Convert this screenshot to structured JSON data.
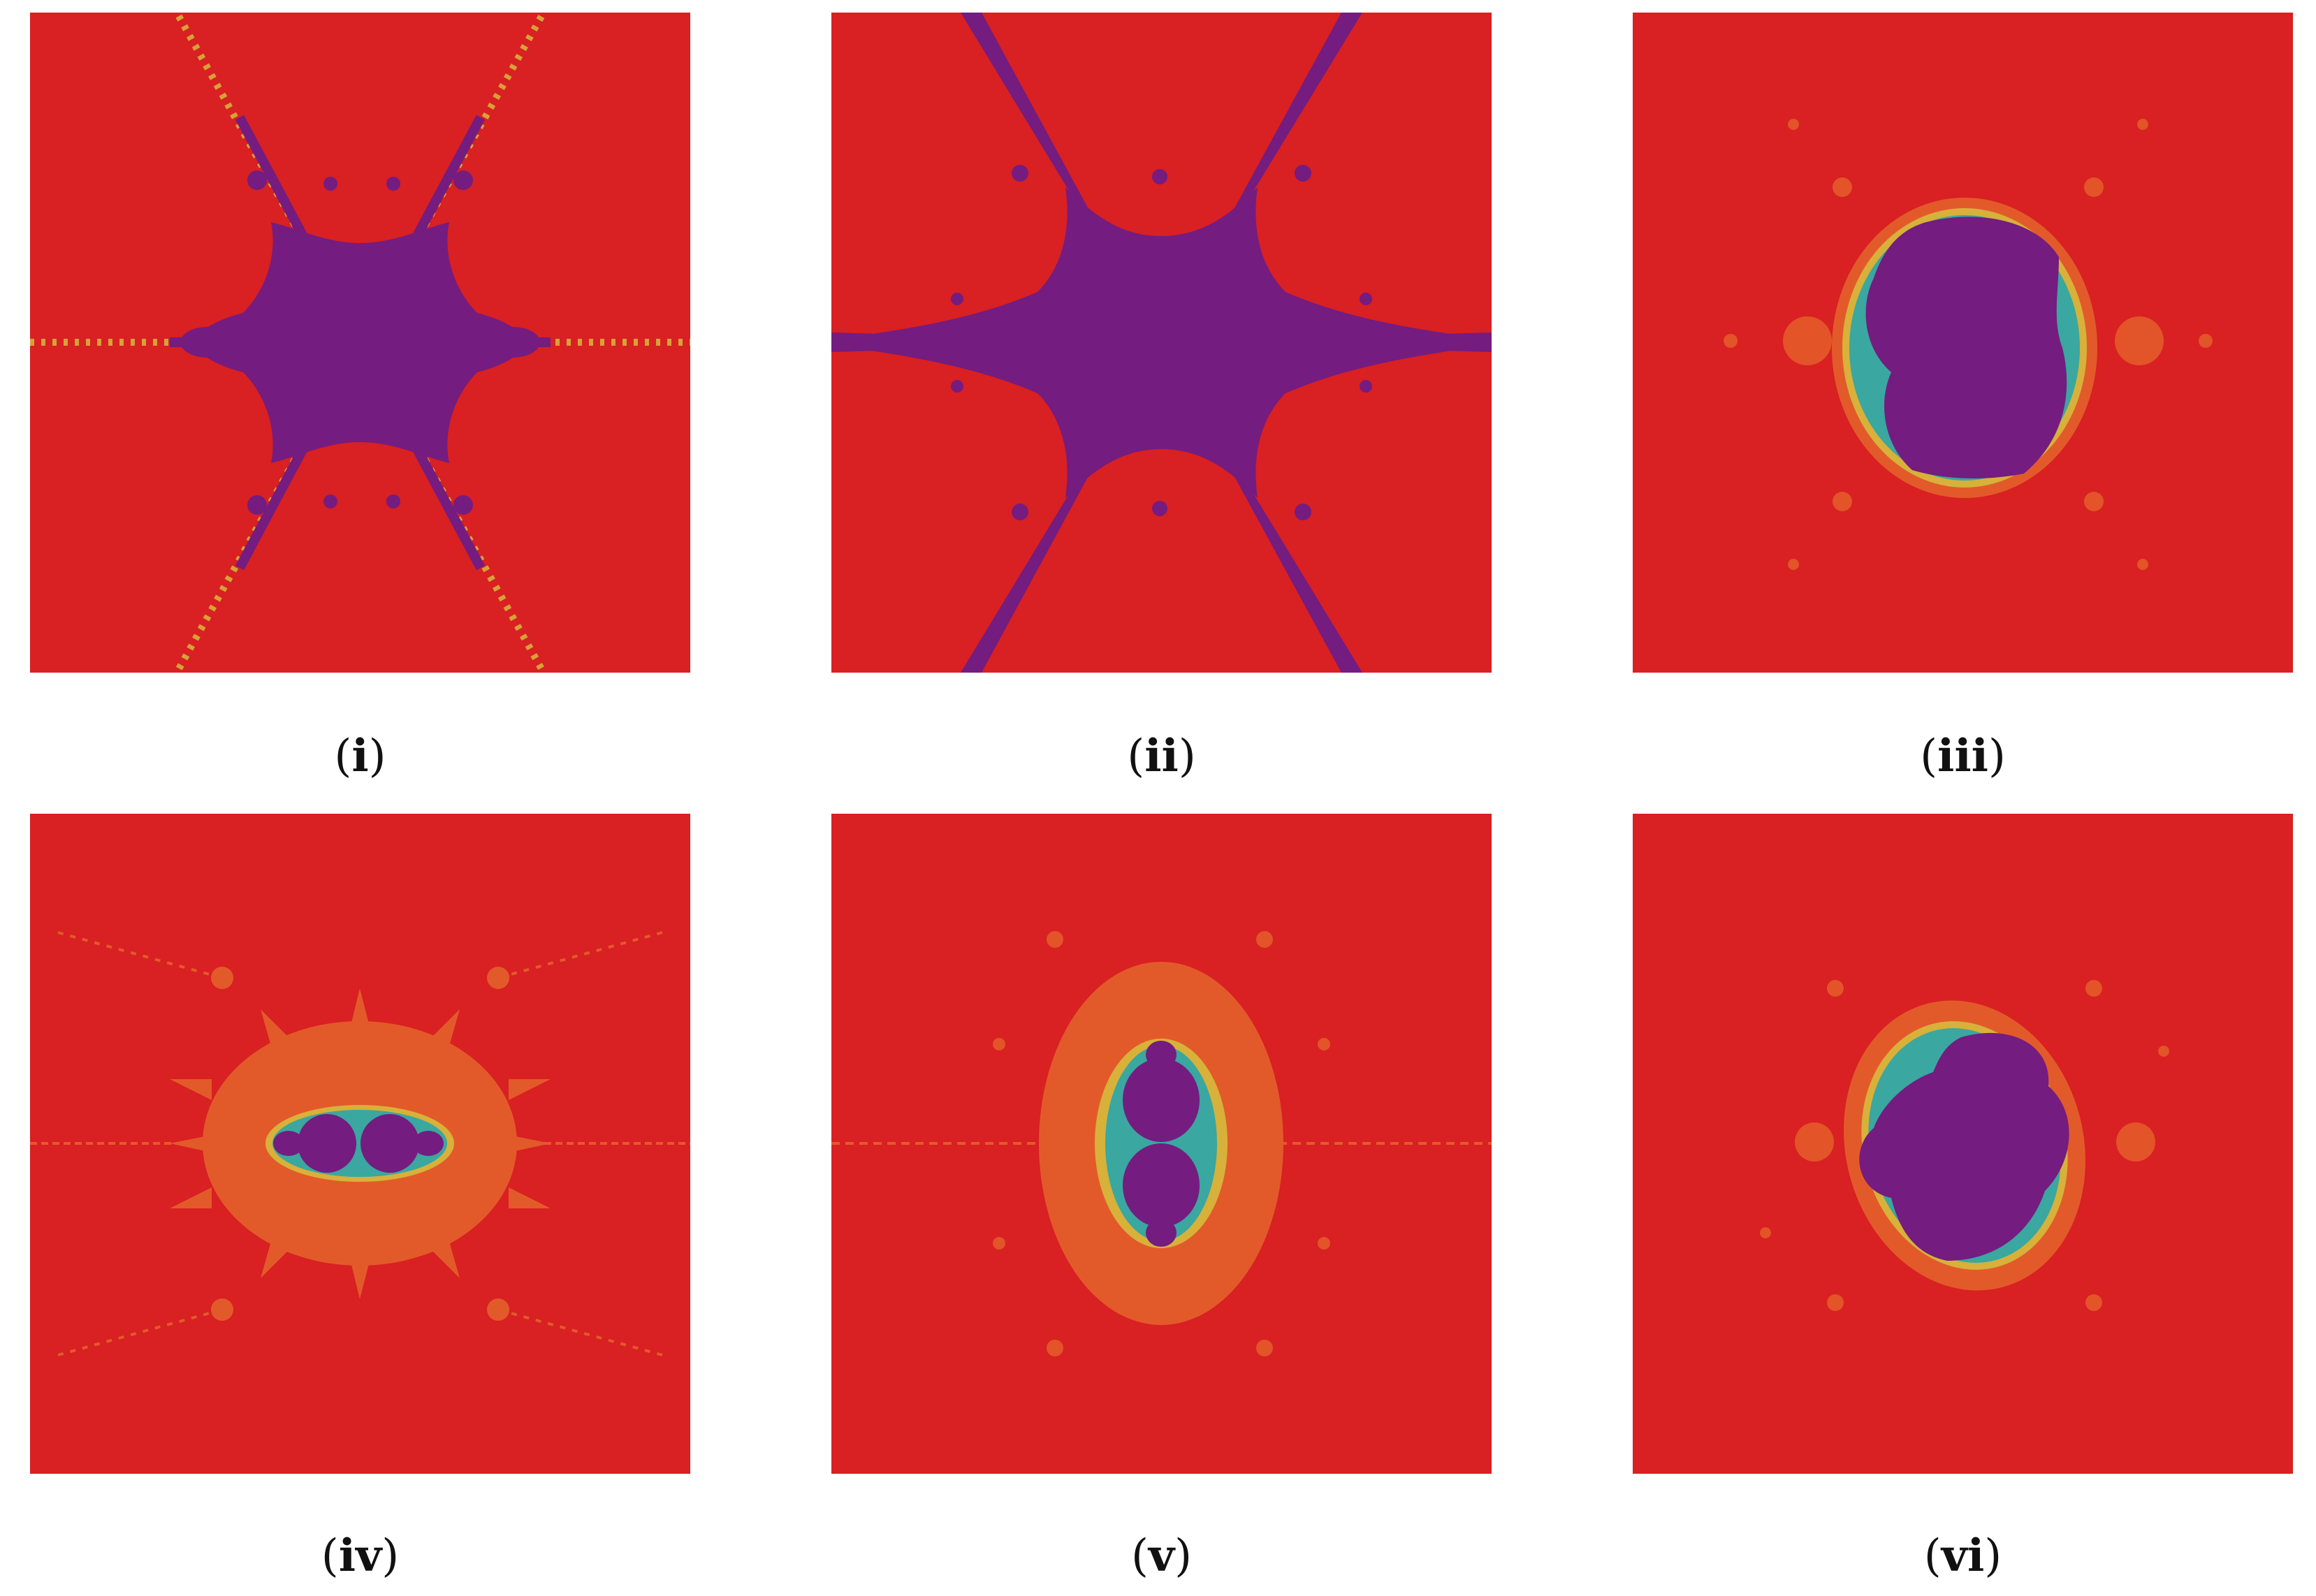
{
  "colors": {
    "background": "#d92022",
    "basin": "#741c80",
    "orange": "#e35a2a",
    "yellow": "#d7b13a",
    "teal": "#3aa7a0"
  },
  "panels": [
    {
      "label": "i"
    },
    {
      "label": "ii"
    },
    {
      "label": "iii"
    },
    {
      "label": "iv"
    },
    {
      "label": "v"
    },
    {
      "label": "vi"
    }
  ]
}
